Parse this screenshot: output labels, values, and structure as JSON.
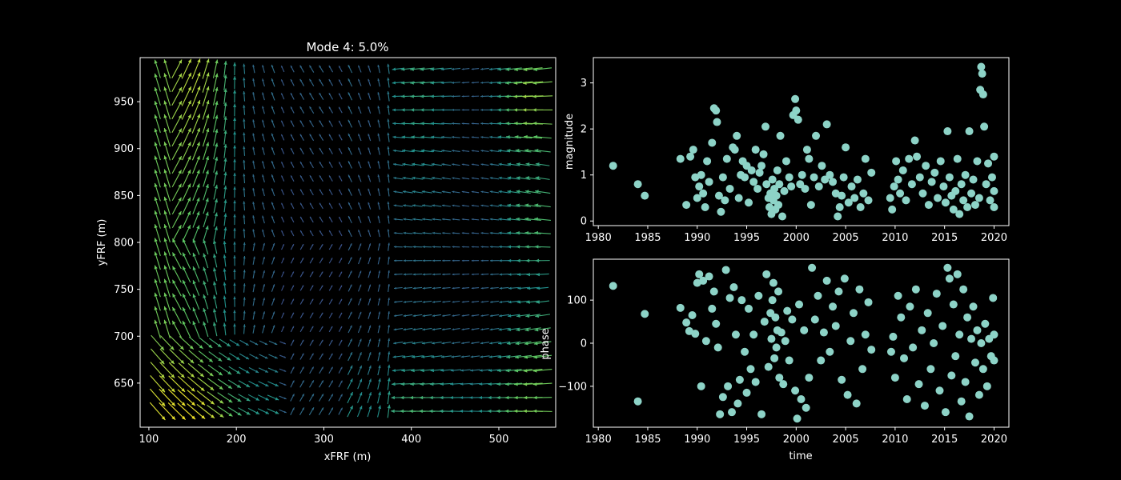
{
  "colors": {
    "background": "#000000",
    "axes": "#ffffff",
    "scatter": "#8dd3c7",
    "quiver_low": "#3b528b",
    "quiver_mid": "#21918c",
    "quiver_high": "#5ec962",
    "quiver_max": "#fde725"
  },
  "chart_data": [
    {
      "type": "quiver",
      "title": "Mode 4: 5.0%",
      "xlabel": "xFRF (m)",
      "ylabel": "yFRF (m)",
      "xlim": [
        90,
        565
      ],
      "ylim": [
        603,
        997
      ],
      "xticks": [
        100,
        200,
        300,
        400,
        500
      ],
      "yticks": [
        650,
        700,
        750,
        800,
        850,
        900,
        950
      ],
      "grid": false,
      "colormap": "viridis",
      "x_range": [
        110,
        550
      ],
      "y_range": [
        620,
        985
      ]
    },
    {
      "type": "scatter",
      "xlabel": "",
      "ylabel": "magnitude",
      "xlim": [
        1979.5,
        2021.5
      ],
      "ylim": [
        -0.1,
        3.55
      ],
      "xticks": [
        1980,
        1985,
        1990,
        1995,
        2000,
        2005,
        2010,
        2015,
        2020
      ],
      "yticks": [
        0,
        1,
        2,
        3
      ],
      "grid": false,
      "points": [
        [
          1981.5,
          1.2
        ],
        [
          1984.0,
          0.8
        ],
        [
          1984.7,
          0.55
        ],
        [
          1988.3,
          1.35
        ],
        [
          1988.9,
          0.35
        ],
        [
          1989.3,
          1.4
        ],
        [
          1989.6,
          1.55
        ],
        [
          1989.8,
          0.95
        ],
        [
          1990.0,
          0.5
        ],
        [
          1990.2,
          0.75
        ],
        [
          1990.4,
          1.0
        ],
        [
          1990.6,
          0.6
        ],
        [
          1990.8,
          0.3
        ],
        [
          1991.0,
          1.3
        ],
        [
          1991.2,
          0.85
        ],
        [
          1991.5,
          1.7
        ],
        [
          1991.7,
          2.45
        ],
        [
          1991.9,
          2.4
        ],
        [
          1992.0,
          2.15
        ],
        [
          1992.2,
          0.55
        ],
        [
          1992.4,
          0.2
        ],
        [
          1992.6,
          0.95
        ],
        [
          1992.8,
          0.45
        ],
        [
          1993.0,
          1.35
        ],
        [
          1993.3,
          0.7
        ],
        [
          1993.6,
          1.6
        ],
        [
          1993.8,
          1.55
        ],
        [
          1994.0,
          1.85
        ],
        [
          1994.2,
          0.5
        ],
        [
          1994.4,
          1.0
        ],
        [
          1994.6,
          1.3
        ],
        [
          1994.8,
          0.95
        ],
        [
          1995.0,
          1.2
        ],
        [
          1995.2,
          0.4
        ],
        [
          1995.5,
          1.1
        ],
        [
          1995.7,
          0.85
        ],
        [
          1995.9,
          1.55
        ],
        [
          1996.1,
          0.7
        ],
        [
          1996.3,
          1.05
        ],
        [
          1996.5,
          1.2
        ],
        [
          1996.7,
          1.45
        ],
        [
          1996.9,
          2.05
        ],
        [
          1997.0,
          0.8
        ],
        [
          1997.2,
          0.5
        ],
        [
          1997.3,
          0.3
        ],
        [
          1997.4,
          0.6
        ],
        [
          1997.5,
          0.15
        ],
        [
          1997.6,
          0.9
        ],
        [
          1997.7,
          0.45
        ],
        [
          1997.8,
          0.7
        ],
        [
          1997.9,
          0.25
        ],
        [
          1998.0,
          0.55
        ],
        [
          1998.1,
          1.1
        ],
        [
          1998.2,
          0.35
        ],
        [
          1998.3,
          0.8
        ],
        [
          1998.4,
          1.85
        ],
        [
          1998.6,
          0.1
        ],
        [
          1998.8,
          0.65
        ],
        [
          1999.0,
          1.3
        ],
        [
          1999.3,
          0.95
        ],
        [
          1999.5,
          0.75
        ],
        [
          1999.7,
          2.3
        ],
        [
          1999.9,
          2.65
        ],
        [
          2000.0,
          2.4
        ],
        [
          2000.2,
          2.2
        ],
        [
          2000.4,
          0.8
        ],
        [
          2000.6,
          1.0
        ],
        [
          2000.9,
          0.7
        ],
        [
          2001.1,
          1.55
        ],
        [
          2001.3,
          1.35
        ],
        [
          2001.5,
          0.35
        ],
        [
          2001.8,
          0.95
        ],
        [
          2002.0,
          1.85
        ],
        [
          2002.3,
          0.75
        ],
        [
          2002.6,
          1.2
        ],
        [
          2002.9,
          0.9
        ],
        [
          2003.1,
          2.1
        ],
        [
          2003.4,
          1.0
        ],
        [
          2003.7,
          0.85
        ],
        [
          2004.0,
          0.6
        ],
        [
          2004.2,
          0.1
        ],
        [
          2004.4,
          0.3
        ],
        [
          2004.6,
          0.55
        ],
        [
          2004.8,
          0.95
        ],
        [
          2005.0,
          1.6
        ],
        [
          2005.3,
          0.4
        ],
        [
          2005.6,
          0.75
        ],
        [
          2005.9,
          0.5
        ],
        [
          2006.2,
          0.9
        ],
        [
          2006.5,
          0.3
        ],
        [
          2006.8,
          0.6
        ],
        [
          2007.0,
          1.35
        ],
        [
          2007.3,
          0.45
        ],
        [
          2007.6,
          1.05
        ],
        [
          2009.5,
          0.5
        ],
        [
          2009.7,
          0.25
        ],
        [
          2009.9,
          0.75
        ],
        [
          2010.1,
          1.3
        ],
        [
          2010.3,
          0.9
        ],
        [
          2010.5,
          0.6
        ],
        [
          2010.8,
          1.1
        ],
        [
          2011.1,
          0.45
        ],
        [
          2011.4,
          1.35
        ],
        [
          2011.7,
          0.8
        ],
        [
          2012.0,
          1.75
        ],
        [
          2012.2,
          1.4
        ],
        [
          2012.5,
          0.95
        ],
        [
          2012.8,
          0.6
        ],
        [
          2013.1,
          1.2
        ],
        [
          2013.4,
          0.35
        ],
        [
          2013.7,
          0.85
        ],
        [
          2014.0,
          1.05
        ],
        [
          2014.3,
          0.5
        ],
        [
          2014.6,
          1.3
        ],
        [
          2014.9,
          0.75
        ],
        [
          2015.1,
          0.4
        ],
        [
          2015.3,
          1.95
        ],
        [
          2015.5,
          0.95
        ],
        [
          2015.7,
          0.55
        ],
        [
          2015.9,
          0.25
        ],
        [
          2016.1,
          0.65
        ],
        [
          2016.3,
          1.35
        ],
        [
          2016.5,
          0.15
        ],
        [
          2016.7,
          0.8
        ],
        [
          2016.9,
          0.45
        ],
        [
          2017.1,
          1.0
        ],
        [
          2017.3,
          0.3
        ],
        [
          2017.5,
          1.95
        ],
        [
          2017.7,
          0.6
        ],
        [
          2017.9,
          0.9
        ],
        [
          2018.1,
          0.35
        ],
        [
          2018.3,
          1.3
        ],
        [
          2018.5,
          0.5
        ],
        [
          2018.6,
          2.85
        ],
        [
          2018.7,
          3.35
        ],
        [
          2018.8,
          3.2
        ],
        [
          2018.9,
          2.75
        ],
        [
          2019.0,
          2.05
        ],
        [
          2019.2,
          0.8
        ],
        [
          2019.4,
          1.25
        ],
        [
          2019.6,
          0.45
        ],
        [
          2019.8,
          0.95
        ],
        [
          2020.0,
          0.3
        ],
        [
          2020.0,
          0.65
        ],
        [
          2020.0,
          1.4
        ]
      ]
    },
    {
      "type": "scatter",
      "xlabel": "time",
      "ylabel": "phase",
      "xlim": [
        1979.5,
        2021.5
      ],
      "ylim": [
        -195,
        195
      ],
      "xticks": [
        1980,
        1985,
        1990,
        1995,
        2000,
        2005,
        2010,
        2015,
        2020
      ],
      "yticks": [
        -100,
        0,
        100
      ],
      "grid": false,
      "points": [
        [
          1981.5,
          133
        ],
        [
          1984.0,
          -135
        ],
        [
          1984.7,
          68
        ],
        [
          1988.3,
          82
        ],
        [
          1988.9,
          48
        ],
        [
          1989.2,
          28
        ],
        [
          1989.5,
          65
        ],
        [
          1989.8,
          22
        ],
        [
          1990.0,
          140
        ],
        [
          1990.2,
          160
        ],
        [
          1990.4,
          -100
        ],
        [
          1990.6,
          145
        ],
        [
          1990.9,
          5
        ],
        [
          1991.2,
          155
        ],
        [
          1991.5,
          80
        ],
        [
          1991.7,
          120
        ],
        [
          1991.9,
          45
        ],
        [
          1992.1,
          -10
        ],
        [
          1992.3,
          -165
        ],
        [
          1992.6,
          -125
        ],
        [
          1992.9,
          170
        ],
        [
          1993.1,
          -100
        ],
        [
          1993.3,
          105
        ],
        [
          1993.5,
          -160
        ],
        [
          1993.7,
          130
        ],
        [
          1993.9,
          20
        ],
        [
          1994.1,
          -140
        ],
        [
          1994.3,
          -85
        ],
        [
          1994.5,
          100
        ],
        [
          1994.8,
          -20
        ],
        [
          1995.0,
          -115
        ],
        [
          1995.2,
          80
        ],
        [
          1995.4,
          -60
        ],
        [
          1995.7,
          20
        ],
        [
          1995.9,
          -90
        ],
        [
          1996.2,
          110
        ],
        [
          1996.5,
          -165
        ],
        [
          1996.8,
          50
        ],
        [
          1997.0,
          160
        ],
        [
          1997.2,
          -55
        ],
        [
          1997.4,
          70
        ],
        [
          1997.5,
          10
        ],
        [
          1997.6,
          100
        ],
        [
          1997.7,
          140
        ],
        [
          1997.8,
          -35
        ],
        [
          1997.9,
          60
        ],
        [
          1998.0,
          -10
        ],
        [
          1998.1,
          30
        ],
        [
          1998.2,
          120
        ],
        [
          1998.3,
          -80
        ],
        [
          1998.5,
          25
        ],
        [
          1998.7,
          -95
        ],
        [
          1998.9,
          5
        ],
        [
          1999.1,
          75
        ],
        [
          1999.3,
          -40
        ],
        [
          1999.6,
          55
        ],
        [
          1999.9,
          -110
        ],
        [
          2000.1,
          -175
        ],
        [
          2000.3,
          90
        ],
        [
          2000.5,
          -130
        ],
        [
          2000.8,
          30
        ],
        [
          2001.0,
          -150
        ],
        [
          2001.3,
          -80
        ],
        [
          2001.6,
          175
        ],
        [
          2001.9,
          55
        ],
        [
          2002.2,
          110
        ],
        [
          2002.5,
          -40
        ],
        [
          2002.8,
          25
        ],
        [
          2003.1,
          145
        ],
        [
          2003.4,
          -20
        ],
        [
          2003.7,
          85
        ],
        [
          2004.0,
          40
        ],
        [
          2004.3,
          120
        ],
        [
          2004.6,
          -85
        ],
        [
          2004.9,
          150
        ],
        [
          2005.2,
          -120
        ],
        [
          2005.5,
          5
        ],
        [
          2005.8,
          70
        ],
        [
          2006.1,
          -140
        ],
        [
          2006.4,
          125
        ],
        [
          2006.7,
          -60
        ],
        [
          2007.0,
          20
        ],
        [
          2007.3,
          95
        ],
        [
          2007.6,
          -15
        ],
        [
          2009.6,
          -20
        ],
        [
          2009.8,
          15
        ],
        [
          2010.0,
          -80
        ],
        [
          2010.3,
          110
        ],
        [
          2010.6,
          60
        ],
        [
          2010.9,
          -35
        ],
        [
          2011.2,
          -130
        ],
        [
          2011.5,
          85
        ],
        [
          2011.8,
          -10
        ],
        [
          2012.1,
          125
        ],
        [
          2012.4,
          -95
        ],
        [
          2012.7,
          30
        ],
        [
          2013.0,
          -145
        ],
        [
          2013.3,
          70
        ],
        [
          2013.6,
          -60
        ],
        [
          2013.9,
          0
        ],
        [
          2014.2,
          115
        ],
        [
          2014.5,
          -110
        ],
        [
          2014.8,
          40
        ],
        [
          2015.1,
          -160
        ],
        [
          2015.3,
          175
        ],
        [
          2015.5,
          150
        ],
        [
          2015.7,
          -75
        ],
        [
          2015.9,
          90
        ],
        [
          2016.1,
          -30
        ],
        [
          2016.3,
          160
        ],
        [
          2016.5,
          20
        ],
        [
          2016.7,
          -135
        ],
        [
          2016.9,
          125
        ],
        [
          2017.1,
          -90
        ],
        [
          2017.3,
          60
        ],
        [
          2017.5,
          -170
        ],
        [
          2017.7,
          10
        ],
        [
          2017.9,
          85
        ],
        [
          2018.1,
          -45
        ],
        [
          2018.3,
          30
        ],
        [
          2018.5,
          -120
        ],
        [
          2018.7,
          0
        ],
        [
          2018.9,
          -60
        ],
        [
          2019.1,
          45
        ],
        [
          2019.3,
          -100
        ],
        [
          2019.5,
          10
        ],
        [
          2019.7,
          -30
        ],
        [
          2019.9,
          105
        ],
        [
          2020.0,
          20
        ],
        [
          2020.0,
          -40
        ]
      ]
    }
  ]
}
